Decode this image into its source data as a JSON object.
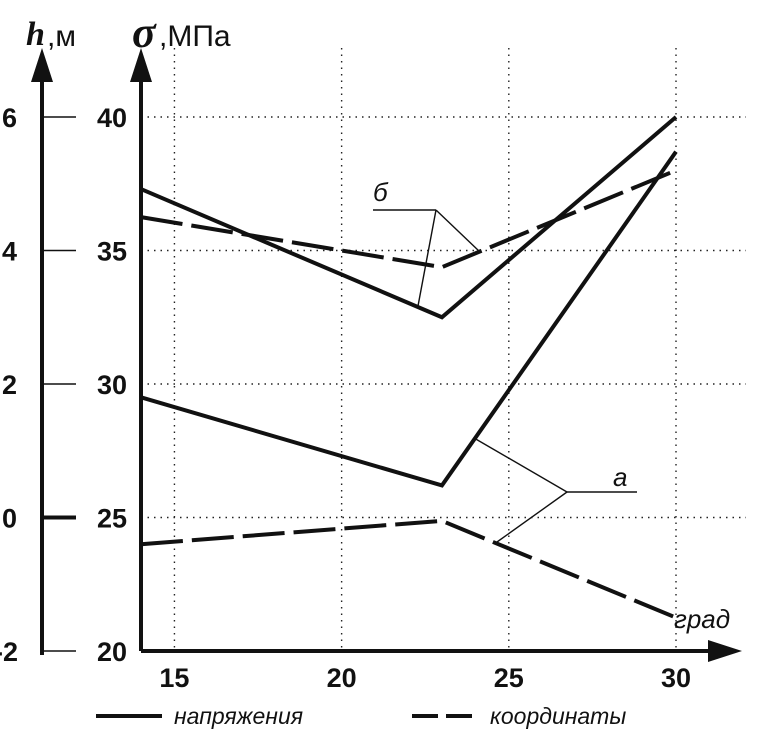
{
  "chart_data": {
    "type": "line",
    "x": [
      14,
      23,
      30
    ],
    "xlabel": "град",
    "xlim": [
      14,
      30
    ],
    "x_ticks": [
      "15",
      "20",
      "25",
      "30"
    ],
    "y_left": {
      "symbol": "h",
      "unit": ",м",
      "ylim": [
        -2,
        6
      ],
      "ticks": [
        "6",
        "4",
        "2",
        "0",
        "-2"
      ]
    },
    "y_right": {
      "symbol": "σ",
      "unit": ",МПа",
      "ylim": [
        20,
        40
      ],
      "ticks": [
        "40",
        "35",
        "30",
        "25",
        "20"
      ]
    },
    "grid": true,
    "series": [
      {
        "group": "б",
        "kind": "stress",
        "axis": "sigma",
        "values": [
          37.3,
          32.5,
          40.0
        ]
      },
      {
        "group": "б",
        "kind": "coordinate",
        "axis": "h",
        "values": [
          4.5,
          3.75,
          5.2
        ]
      },
      {
        "group": "а",
        "kind": "stress",
        "axis": "sigma",
        "values": [
          29.5,
          26.2,
          38.7
        ]
      },
      {
        "group": "а",
        "kind": "coordinate",
        "axis": "h",
        "values": [
          -0.4,
          -0.05,
          -1.5
        ]
      }
    ],
    "annotations": [
      "б",
      "а"
    ],
    "legend": {
      "placement": "bottom",
      "entries": [
        {
          "label": "напряжения",
          "style": "solid"
        },
        {
          "label": "координаты",
          "style": "dashed"
        }
      ]
    }
  }
}
